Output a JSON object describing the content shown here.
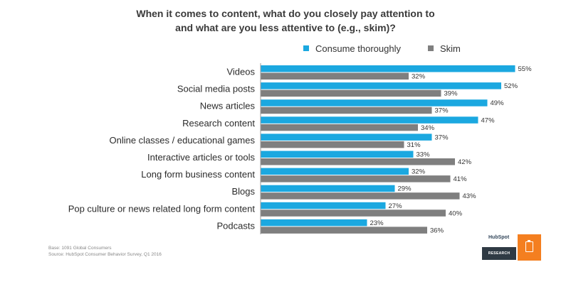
{
  "title_line1": "When it comes to content, what do you closely pay attention to",
  "title_line2": "and what are you less attentive to (e.g., skim)?",
  "footnote_line1": "Base: 1091 Global Consumers",
  "footnote_line2": "Source: HubSpot Consumer Behavior Survey, Q1 2016",
  "logo_text": "HubSpot",
  "logo_badge": "RESEARCH",
  "colors": {
    "consume": "#1ba8e0",
    "skim": "#7f7f7f",
    "accent": "#f47f20"
  },
  "icons": {
    "logo_mark": "clipboard-icon"
  },
  "chart_data": {
    "type": "bar",
    "orientation": "horizontal",
    "title": "When it comes to content, what do you closely pay attention to and what are you less attentive to (e.g., skim)?",
    "categories": [
      "Videos",
      "Social media posts",
      "News articles",
      "Research content",
      "Online classes / educational games",
      "Interactive articles or tools",
      "Long form business content",
      "Blogs",
      "Pop culture or news related long form content",
      "Podcasts"
    ],
    "series": [
      {
        "name": "Consume thoroughly",
        "values": [
          55,
          52,
          49,
          47,
          37,
          33,
          32,
          29,
          27,
          23
        ]
      },
      {
        "name": "Skim",
        "values": [
          32,
          39,
          37,
          34,
          31,
          42,
          41,
          43,
          40,
          36
        ]
      }
    ],
    "value_suffix": "%",
    "xlim": [
      0,
      55
    ],
    "legend": "top",
    "grid": false
  }
}
